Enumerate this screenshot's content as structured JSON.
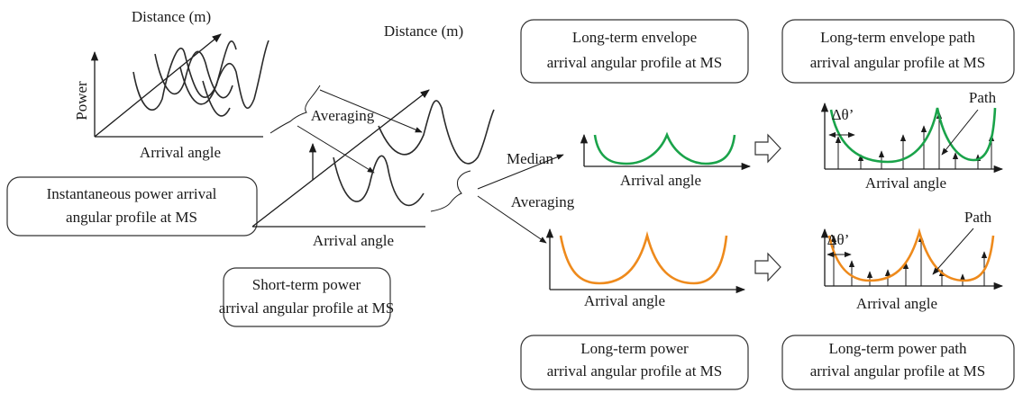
{
  "instantaneous": {
    "distance": "Distance (m)",
    "power": "Power",
    "angle": "Arrival angle",
    "caption": [
      "Instantaneous power arrival",
      "angular profile at MS"
    ]
  },
  "averaging_1": "Averaging",
  "short_term": {
    "distance": "Distance (m)",
    "angle": "Arrival angle",
    "caption": [
      "Short-term power",
      "arrival angular profile at MS"
    ]
  },
  "median": "Median",
  "averaging_2": "Averaging",
  "long_term_envelope": {
    "angle": "Arrival angle",
    "caption": [
      "Long-term envelope",
      "arrival angular profile at MS"
    ]
  },
  "long_term_power": {
    "angle": "Arrival angle",
    "caption": [
      "Long-term power",
      "arrival angular profile at MS"
    ]
  },
  "envelope_path": {
    "delta": "Δθ’",
    "path": "Path",
    "angle": "Arrival angle",
    "caption": [
      "Long-term envelope path",
      "arrival angular profile at MS"
    ]
  },
  "power_path": {
    "delta": "Δθ’",
    "path": "Path",
    "angle": "Arrival angle",
    "caption": [
      "Long-term power path",
      "arrival angular profile at MS"
    ]
  }
}
